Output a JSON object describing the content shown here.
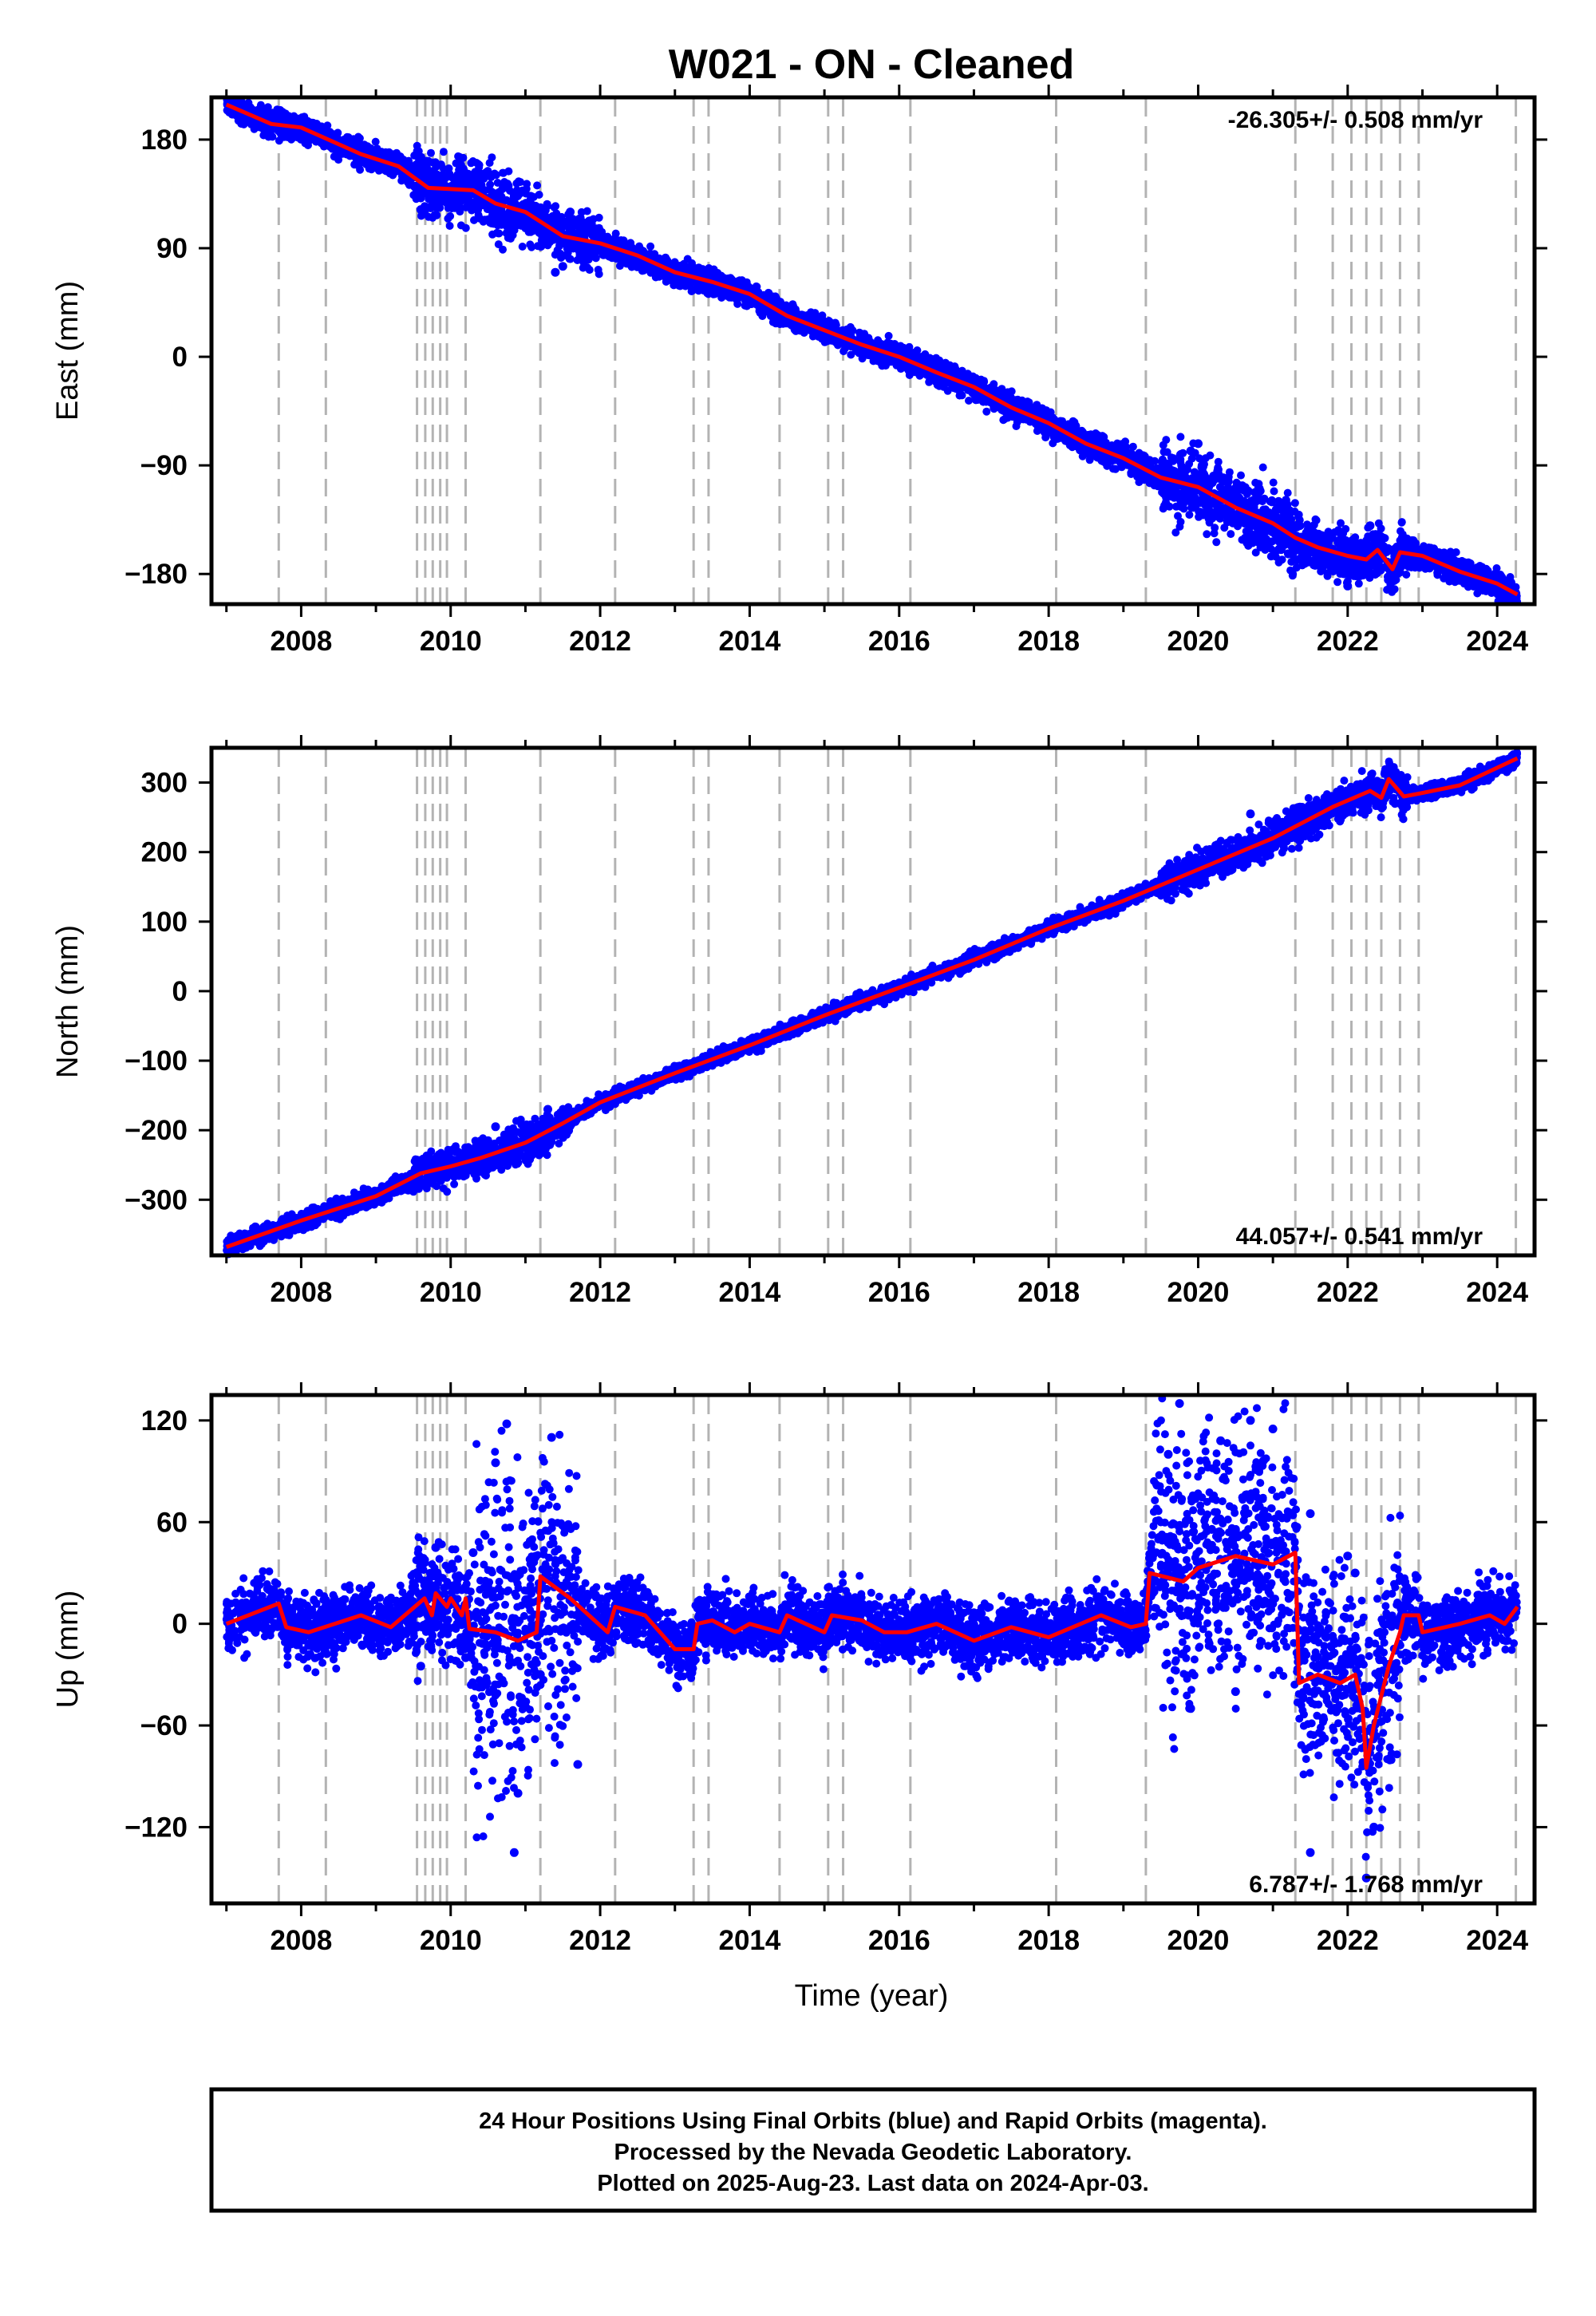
{
  "chart_data": {
    "title": "W021  - ON - Cleaned",
    "type": "scatter",
    "xlabel": "Time (year)",
    "xlim": [
      2006.8,
      2024.5
    ],
    "xticks": [
      "2008",
      "2010",
      "2012",
      "2014",
      "2016",
      "2018",
      "2020",
      "2022",
      "2024"
    ],
    "event_lines": [
      2007.7,
      2008.33,
      2009.55,
      2009.66,
      2009.76,
      2009.86,
      2009.95,
      2010.2,
      2011.2,
      2012.2,
      2013.25,
      2013.45,
      2014.4,
      2015.05,
      2015.25,
      2016.15,
      2018.1,
      2019.3,
      2021.3,
      2021.8,
      2022.05,
      2022.25,
      2022.45,
      2022.7,
      2022.95,
      2024.25
    ],
    "series_colors": {
      "final_orbits": "#0000ff",
      "rapid_orbits": "#ff00ff",
      "model": "#ff0000"
    },
    "panels": [
      {
        "name": "east",
        "ylabel": "East (mm)",
        "ylim": [
          -205,
          215
        ],
        "yticks": [
          "180",
          "90",
          "0",
          "−90",
          "−180"
        ],
        "rate_label": "-26.305+/- 0.508 mm/yr",
        "rate_position": "top-right",
        "model_line": [
          [
            2007.0,
            209
          ],
          [
            2007.6,
            193
          ],
          [
            2008.0,
            190
          ],
          [
            2008.8,
            168
          ],
          [
            2009.3,
            158
          ],
          [
            2009.7,
            140
          ],
          [
            2010.3,
            138
          ],
          [
            2010.6,
            127
          ],
          [
            2011.0,
            120
          ],
          [
            2011.2,
            112
          ],
          [
            2011.5,
            100
          ],
          [
            2012.0,
            94
          ],
          [
            2012.5,
            84
          ],
          [
            2013.0,
            70
          ],
          [
            2013.5,
            62
          ],
          [
            2014.0,
            52
          ],
          [
            2014.5,
            34
          ],
          [
            2015.0,
            22
          ],
          [
            2015.5,
            10
          ],
          [
            2016.0,
            0
          ],
          [
            2016.5,
            -13
          ],
          [
            2017.0,
            -25
          ],
          [
            2017.5,
            -42
          ],
          [
            2018.0,
            -55
          ],
          [
            2018.5,
            -72
          ],
          [
            2019.0,
            -84
          ],
          [
            2019.5,
            -100
          ],
          [
            2020.0,
            -108
          ],
          [
            2020.5,
            -125
          ],
          [
            2021.0,
            -138
          ],
          [
            2021.3,
            -150
          ],
          [
            2021.6,
            -158
          ],
          [
            2022.0,
            -165
          ],
          [
            2022.25,
            -168
          ],
          [
            2022.4,
            -160
          ],
          [
            2022.6,
            -176
          ],
          [
            2022.7,
            -162
          ],
          [
            2023.0,
            -165
          ],
          [
            2023.5,
            -178
          ],
          [
            2024.0,
            -188
          ],
          [
            2024.27,
            -197
          ]
        ],
        "scatter_bands": [
          {
            "x": [
              2007.0,
              2009.5
            ],
            "spread": 5,
            "outliers": []
          },
          {
            "x": [
              2009.5,
              2011.2
            ],
            "spread": 12,
            "outliers": [
              [
                2011.6,
                120
              ],
              [
                2009.6,
                122
              ]
            ]
          },
          {
            "x": [
              2011.2,
              2012.0
            ],
            "spread": 10,
            "outliers": [
              [
                2011.4,
                70
              ],
              [
                2011.5,
                75
              ]
            ]
          },
          {
            "x": [
              2012.0,
              2019.5
            ],
            "spread": 5,
            "outliers": []
          },
          {
            "x": [
              2019.5,
              2021.3
            ],
            "spread": 14,
            "outliers": [
              [
                2019.9,
                -78
              ],
              [
                2020.0,
                -72
              ],
              [
                2020.7,
                -150
              ]
            ]
          },
          {
            "x": [
              2021.3,
              2022.8
            ],
            "spread": 10,
            "outliers": [
              [
                2021.5,
                -152
              ],
              [
                2022.3,
                -140
              ],
              [
                2022.0,
                -190
              ]
            ]
          },
          {
            "x": [
              2022.8,
              2024.27
            ],
            "spread": 5,
            "outliers": []
          }
        ]
      },
      {
        "name": "north",
        "ylabel": "North (mm)",
        "ylim": [
          -380,
          350
        ],
        "yticks": [
          "300",
          "200",
          "100",
          "0",
          "−100",
          "−200",
          "−300"
        ],
        "rate_label": "44.057+/- 0.541 mm/yr",
        "rate_position": "bottom-right",
        "model_line": [
          [
            2007.0,
            -368
          ],
          [
            2008.0,
            -330
          ],
          [
            2009.0,
            -295
          ],
          [
            2009.6,
            -262
          ],
          [
            2010.0,
            -252
          ],
          [
            2010.4,
            -240
          ],
          [
            2011.0,
            -218
          ],
          [
            2011.5,
            -190
          ],
          [
            2012.0,
            -160
          ],
          [
            2013.0,
            -118
          ],
          [
            2014.0,
            -78
          ],
          [
            2015.0,
            -35
          ],
          [
            2016.0,
            5
          ],
          [
            2017.0,
            45
          ],
          [
            2018.0,
            90
          ],
          [
            2019.0,
            130
          ],
          [
            2020.0,
            175
          ],
          [
            2021.0,
            220
          ],
          [
            2021.8,
            265
          ],
          [
            2022.3,
            288
          ],
          [
            2022.45,
            278
          ],
          [
            2022.55,
            305
          ],
          [
            2022.75,
            280
          ],
          [
            2023.0,
            285
          ],
          [
            2023.5,
            296
          ],
          [
            2024.27,
            335
          ]
        ],
        "scatter_bands": [
          {
            "x": [
              2007.0,
              2009.5
            ],
            "spread": 6,
            "outliers": []
          },
          {
            "x": [
              2009.5,
              2011.6
            ],
            "spread": 13,
            "outliers": [
              [
                2011.3,
                -170
              ],
              [
                2010.6,
                -195
              ]
            ]
          },
          {
            "x": [
              2011.6,
              2019.5
            ],
            "spread": 5,
            "outliers": []
          },
          {
            "x": [
              2019.5,
              2021.3
            ],
            "spread": 12,
            "outliers": [
              [
                2020.7,
                255
              ]
            ]
          },
          {
            "x": [
              2021.3,
              2022.8
            ],
            "spread": 12,
            "outliers": [
              [
                2022.5,
                315
              ]
            ]
          },
          {
            "x": [
              2022.8,
              2024.27
            ],
            "spread": 5,
            "outliers": []
          }
        ]
      },
      {
        "name": "up",
        "ylabel": "Up (mm)",
        "ylim": [
          -165,
          135
        ],
        "yticks": [
          "120",
          "60",
          "0",
          "−60",
          "−120"
        ],
        "rate_label": "6.787+/- 1.768 mm/yr",
        "rate_position": "bottom-right",
        "model_line": [
          [
            2007.0,
            0
          ],
          [
            2007.7,
            12
          ],
          [
            2007.8,
            -2
          ],
          [
            2008.1,
            -5
          ],
          [
            2008.8,
            5
          ],
          [
            2009.2,
            -2
          ],
          [
            2009.65,
            15
          ],
          [
            2009.75,
            5
          ],
          [
            2009.8,
            18
          ],
          [
            2009.95,
            10
          ],
          [
            2010.0,
            15
          ],
          [
            2010.15,
            5
          ],
          [
            2010.2,
            15
          ],
          [
            2010.25,
            -3
          ],
          [
            2010.6,
            -5
          ],
          [
            2010.9,
            -10
          ],
          [
            2011.15,
            -5
          ],
          [
            2011.2,
            28
          ],
          [
            2011.6,
            15
          ],
          [
            2012.1,
            -5
          ],
          [
            2012.2,
            10
          ],
          [
            2012.6,
            5
          ],
          [
            2013.0,
            -15
          ],
          [
            2013.25,
            -15
          ],
          [
            2013.3,
            0
          ],
          [
            2013.5,
            2
          ],
          [
            2013.8,
            -5
          ],
          [
            2014.0,
            0
          ],
          [
            2014.4,
            -5
          ],
          [
            2014.5,
            5
          ],
          [
            2015.0,
            -5
          ],
          [
            2015.1,
            5
          ],
          [
            2015.5,
            2
          ],
          [
            2015.8,
            -5
          ],
          [
            2016.1,
            -5
          ],
          [
            2016.5,
            0
          ],
          [
            2017.0,
            -10
          ],
          [
            2017.5,
            -2
          ],
          [
            2018.0,
            -8
          ],
          [
            2018.7,
            5
          ],
          [
            2019.1,
            -2
          ],
          [
            2019.3,
            0
          ],
          [
            2019.35,
            30
          ],
          [
            2019.8,
            25
          ],
          [
            2020.0,
            33
          ],
          [
            2020.5,
            40
          ],
          [
            2021.0,
            35
          ],
          [
            2021.3,
            42
          ],
          [
            2021.35,
            -35
          ],
          [
            2021.6,
            -30
          ],
          [
            2021.9,
            -35
          ],
          [
            2022.1,
            -30
          ],
          [
            2022.2,
            -50
          ],
          [
            2022.25,
            -85
          ],
          [
            2022.35,
            -60
          ],
          [
            2022.55,
            -25
          ],
          [
            2022.7,
            -5
          ],
          [
            2022.75,
            5
          ],
          [
            2022.95,
            5
          ],
          [
            2023.0,
            -5
          ],
          [
            2023.5,
            0
          ],
          [
            2023.9,
            5
          ],
          [
            2024.1,
            0
          ],
          [
            2024.27,
            10
          ]
        ],
        "scatter_bands": [
          {
            "x": [
              2007.0,
              2009.5
            ],
            "spread": 9,
            "outliers": [
              [
                2009.8,
                45
              ],
              [
                2009.6,
                -25
              ]
            ]
          },
          {
            "x": [
              2009.5,
              2010.3
            ],
            "spread": 16,
            "outliers": [
              [
                2010.2,
                -20
              ],
              [
                2010.3,
                42
              ]
            ]
          },
          {
            "x": [
              2010.3,
              2011.0
            ],
            "spread": 45,
            "outliers": [
              [
                2010.75,
                118
              ],
              [
                2010.85,
                -135
              ],
              [
                2010.6,
                95
              ],
              [
                2010.9,
                -100
              ]
            ]
          },
          {
            "x": [
              2011.0,
              2011.7
            ],
            "spread": 40,
            "outliers": [
              [
                2011.35,
                110
              ],
              [
                2011.7,
                -83
              ],
              [
                2011.2,
                -30
              ]
            ]
          },
          {
            "x": [
              2011.7,
              2019.4
            ],
            "spread": 9,
            "outliers": []
          },
          {
            "x": [
              2019.4,
              2019.9
            ],
            "spread": 40,
            "outliers": [
              [
                2019.75,
                130
              ],
              [
                2019.9,
                -50
              ],
              [
                2019.6,
                100
              ]
            ]
          },
          {
            "x": [
              2019.9,
              2021.3
            ],
            "spread": 35,
            "outliers": [
              [
                2020.7,
                120
              ],
              [
                2021.0,
                115
              ],
              [
                2020.3,
                108
              ],
              [
                2020.5,
                -40
              ]
            ]
          },
          {
            "x": [
              2021.3,
              2022.7
            ],
            "spread": 30,
            "outliers": [
              [
                2021.5,
                -135
              ],
              [
                2022.25,
                -150
              ],
              [
                2022.0,
                40
              ],
              [
                2021.5,
                65
              ],
              [
                2022.1,
                30
              ],
              [
                2022.35,
                -120
              ]
            ]
          },
          {
            "x": [
              2022.7,
              2024.27
            ],
            "spread": 10,
            "outliers": []
          }
        ]
      }
    ]
  },
  "footer": {
    "line1": "24 Hour Positions Using Final Orbits (blue) and Rapid Orbits (magenta).",
    "line2": "Processed by the Nevada Geodetic Laboratory.",
    "line3": "Plotted on 2025-Aug-23. Last data on 2024-Apr-03."
  }
}
